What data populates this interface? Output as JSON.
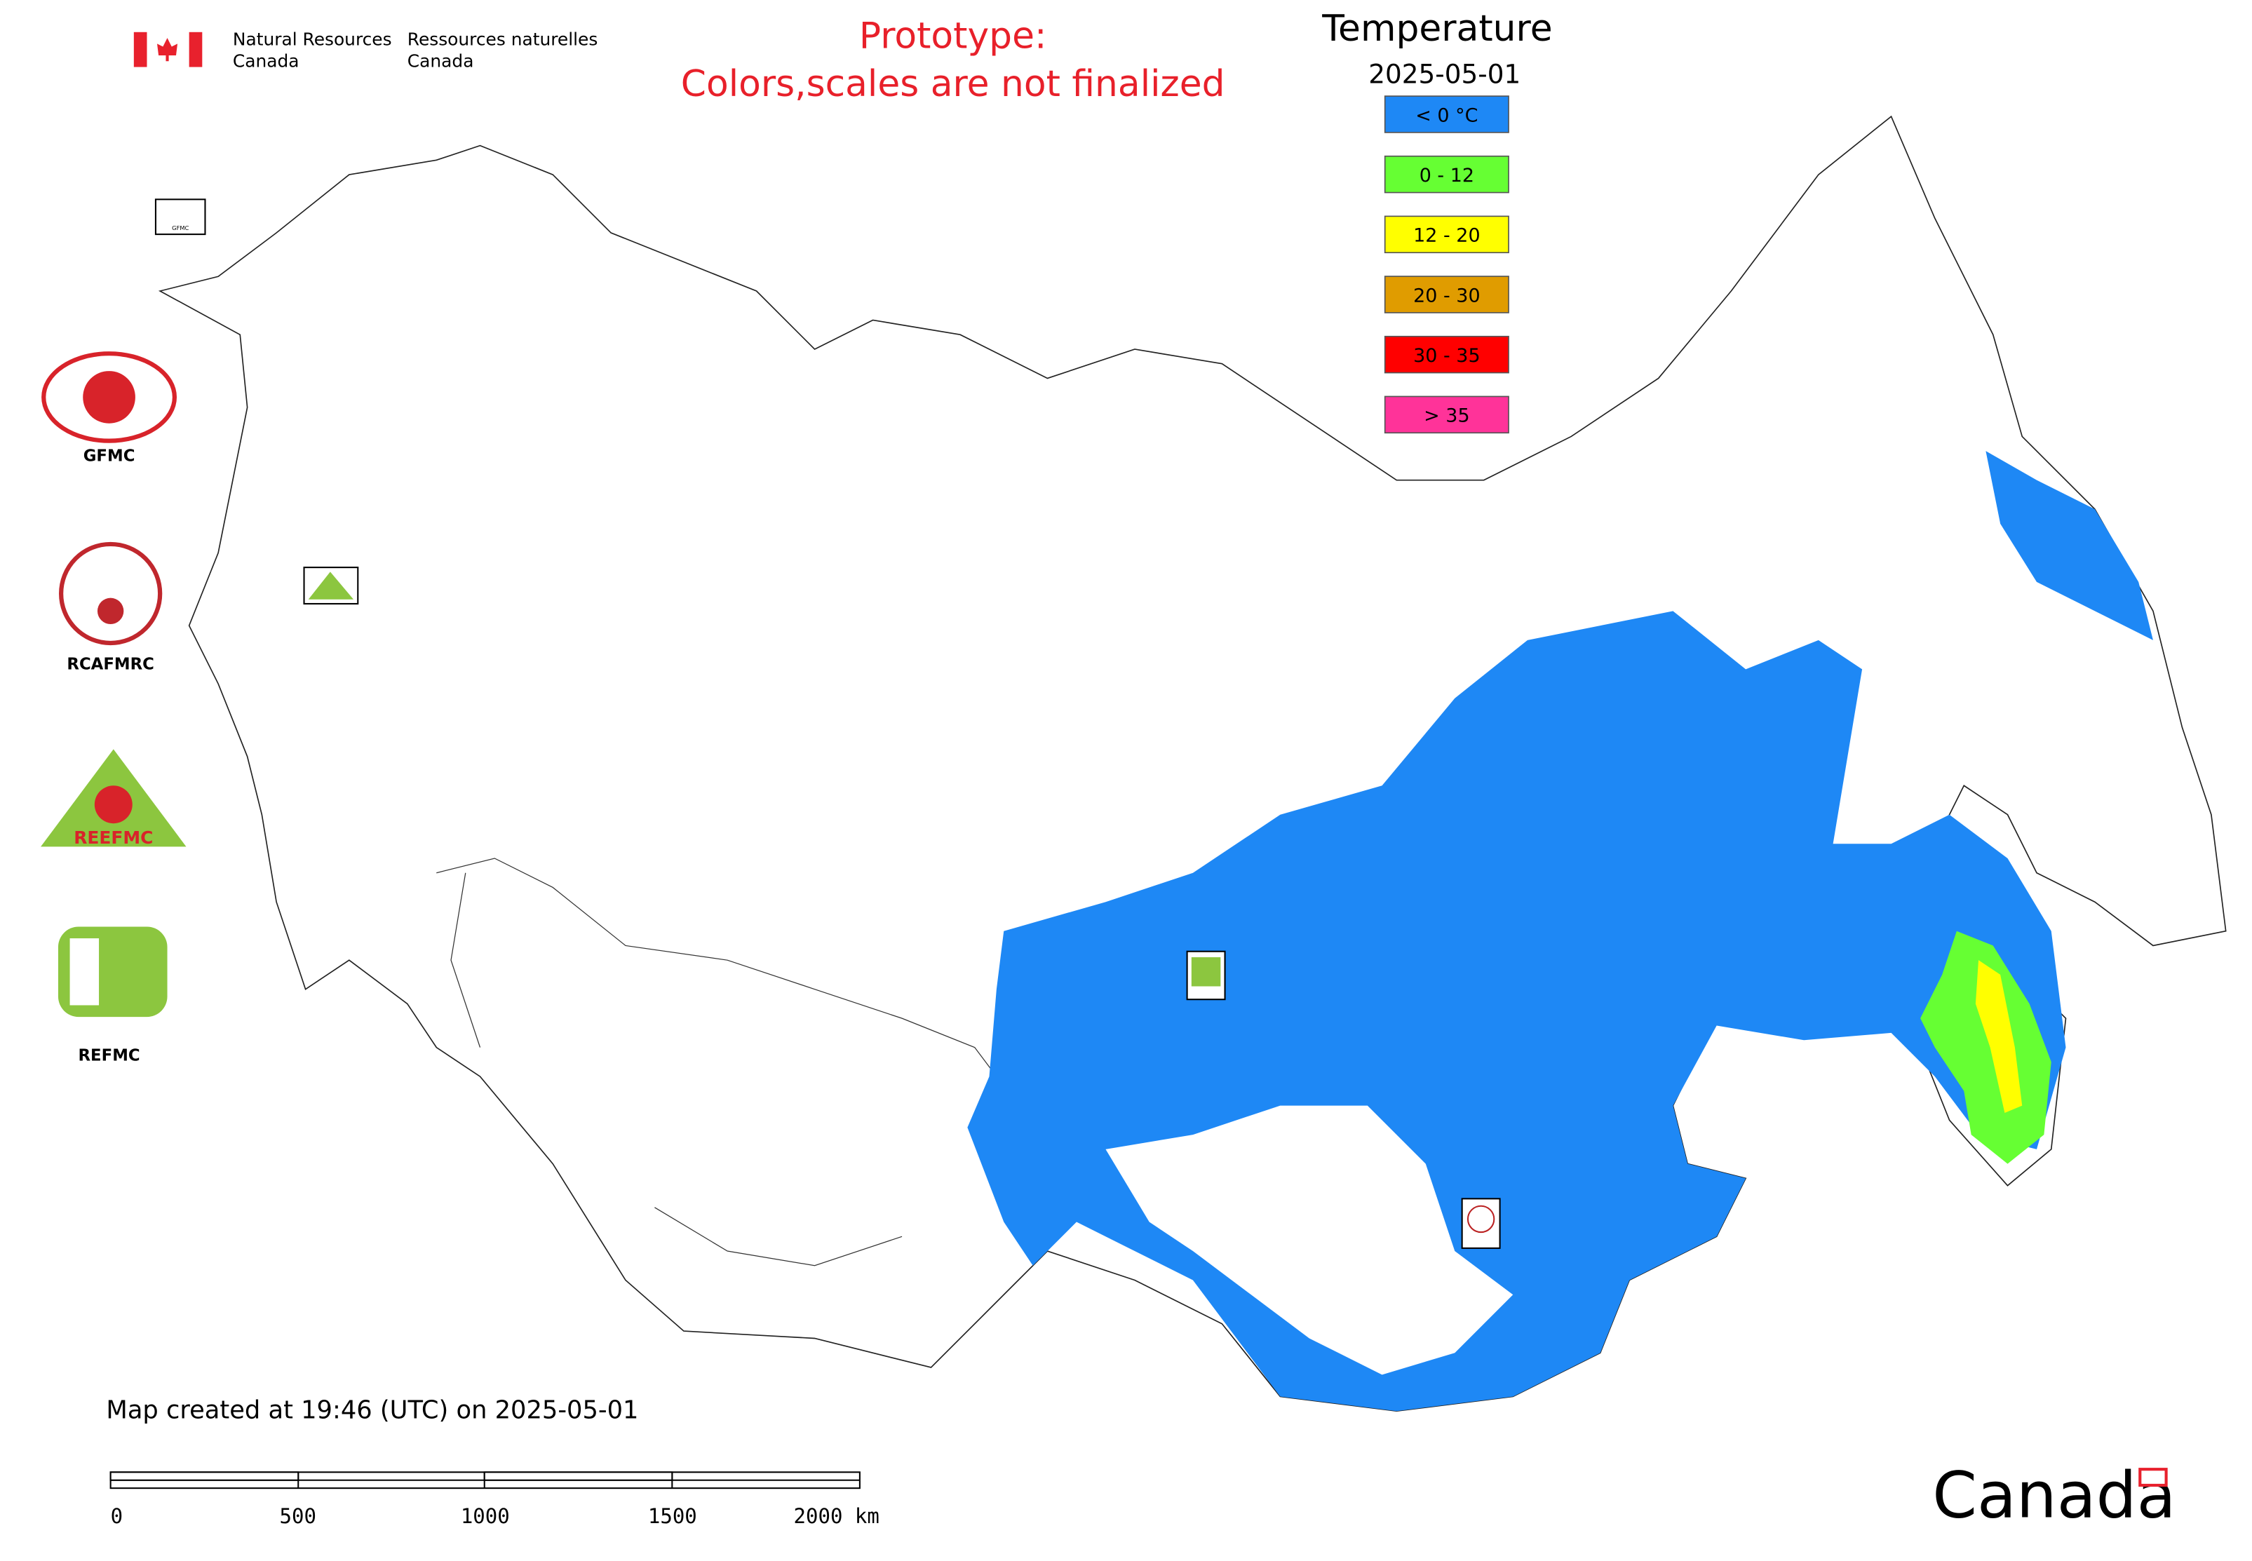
{
  "header": {
    "org_en": [
      "Natural Resources",
      "Canada"
    ],
    "org_fr": [
      "Ressources naturelles",
      "Canada"
    ],
    "notice": [
      "Prototype:",
      "Colors,scales are not finalized"
    ]
  },
  "legend": {
    "title": "Temperature",
    "date": "2025-05-01",
    "items": [
      {
        "label": "< 0 °C",
        "color": "#1e88f5"
      },
      {
        "label": "0 - 12",
        "color": "#66ff33"
      },
      {
        "label": "12 - 20",
        "color": "#ffff00"
      },
      {
        "label": "20 - 30",
        "color": "#e09c00"
      },
      {
        "label": "30 - 35",
        "color": "#ff0000"
      },
      {
        "label": "> 35",
        "color": "#ff3399"
      }
    ]
  },
  "logos": [
    "GFMC",
    "RCAFMRC",
    "REEFMC",
    "REFMC"
  ],
  "footer": {
    "created": "Map created at 19:46 (UTC) on 2025-05-01",
    "scale_labels": [
      "0",
      "500",
      "1000",
      "1500",
      "2000 km"
    ],
    "wordmark": "Canada"
  }
}
